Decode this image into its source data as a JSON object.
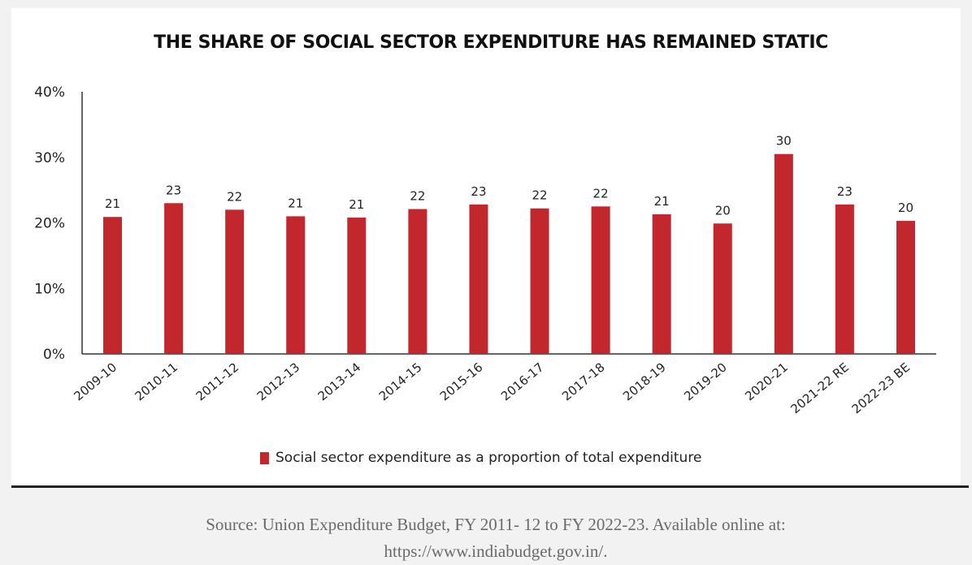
{
  "chart_data": {
    "type": "bar",
    "title": "THE SHARE OF SOCIAL SECTOR EXPENDITURE HAS REMAINED STATIC",
    "categories": [
      "2009-10",
      "2010-11",
      "2011-12",
      "2012-13",
      "2013-14",
      "2014-15",
      "2015-16",
      "2016-17",
      "2017-18",
      "2018-19",
      "2019-20",
      "2020-21",
      "2021-22 RE",
      "2022-23 BE"
    ],
    "series": [
      {
        "name": "Social sector expenditure as a proportion of total expenditure",
        "values": [
          20.9,
          23.0,
          22.0,
          21.0,
          20.8,
          22.1,
          22.8,
          22.2,
          22.5,
          21.3,
          19.9,
          30.5,
          22.8,
          20.3
        ],
        "labels": [
          "21",
          "23",
          "22",
          "21",
          "21",
          "22",
          "23",
          "22",
          "22",
          "21",
          "20",
          "30",
          "23",
          "20"
        ],
        "color": "#c1272d"
      }
    ],
    "xlabel": "",
    "ylabel": "",
    "ylim": [
      0,
      40
    ],
    "yticks": [
      0,
      10,
      20,
      30,
      40
    ],
    "ytick_labels": [
      "0%",
      "10%",
      "20%",
      "30%",
      "40%"
    ],
    "grid": false,
    "legend": "bottom-center"
  },
  "source": {
    "line1": "Source: Union Expenditure Budget, FY 2011- 12 to FY 2022-23. Available online at:",
    "line2": "https://www.indiabudget.gov.in/."
  }
}
